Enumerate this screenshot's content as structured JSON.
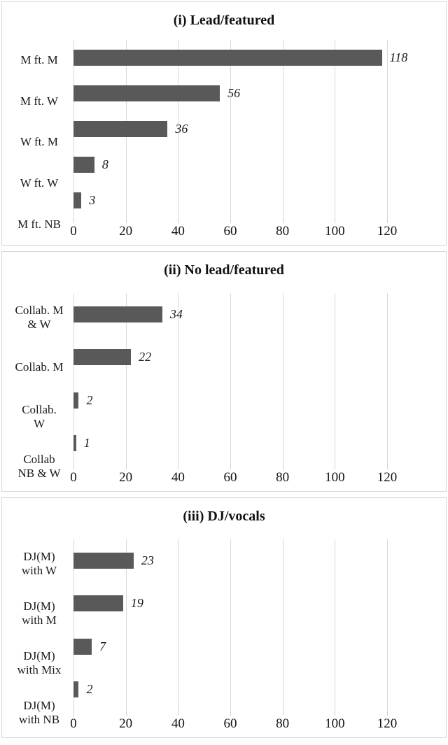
{
  "style": {
    "bar_color": "#595959",
    "gridline_color": "#d9d9d9",
    "panel_border_color": "#d6d6d6",
    "background": "#ffffff"
  },
  "chart_data": [
    {
      "type": "bar",
      "orientation": "horizontal",
      "title": "(i) Lead/featured",
      "categories": [
        "M ft. M",
        "M ft. W",
        "W ft. M",
        "W ft. W",
        "M ft. NB"
      ],
      "values": [
        118,
        56,
        36,
        8,
        3
      ],
      "data_labels": [
        "118",
        "56",
        "36",
        "8",
        "3"
      ],
      "xticks": [
        0,
        20,
        40,
        60,
        80,
        100,
        120
      ],
      "xtick_labels": [
        "0",
        "20",
        "40",
        "60",
        "80",
        "100",
        "120"
      ],
      "xlim": [
        0,
        120
      ],
      "xlabel": "",
      "ylabel": "",
      "grid": true,
      "legend": null
    },
    {
      "type": "bar",
      "orientation": "horizontal",
      "title": "(ii) No lead/featured",
      "categories": [
        "Collab. M\n& W",
        "Collab. M",
        "Collab.\nW",
        "Collab\nNB & W"
      ],
      "values": [
        34,
        22,
        2,
        1
      ],
      "data_labels": [
        "34",
        "22",
        "2",
        "1"
      ],
      "xticks": [
        0,
        20,
        40,
        60,
        80,
        100,
        120
      ],
      "xtick_labels": [
        "0",
        "20",
        "40",
        "60",
        "80",
        "100",
        "120"
      ],
      "xlim": [
        0,
        120
      ],
      "xlabel": "",
      "ylabel": "",
      "grid": true,
      "legend": null
    },
    {
      "type": "bar",
      "orientation": "horizontal",
      "title": "(iii) DJ/vocals",
      "categories": [
        "DJ(M)\nwith W",
        "DJ(M)\nwith M",
        "DJ(M)\nwith Mix",
        "DJ(M)\nwith NB"
      ],
      "values": [
        23,
        19,
        7,
        2
      ],
      "data_labels": [
        "23",
        "19",
        "7",
        "2"
      ],
      "xticks": [
        0,
        20,
        40,
        60,
        80,
        100,
        120
      ],
      "xtick_labels": [
        "0",
        "20",
        "40",
        "60",
        "80",
        "100",
        "120"
      ],
      "xlim": [
        0,
        120
      ],
      "xlabel": "",
      "ylabel": "",
      "grid": true,
      "legend": null
    }
  ]
}
